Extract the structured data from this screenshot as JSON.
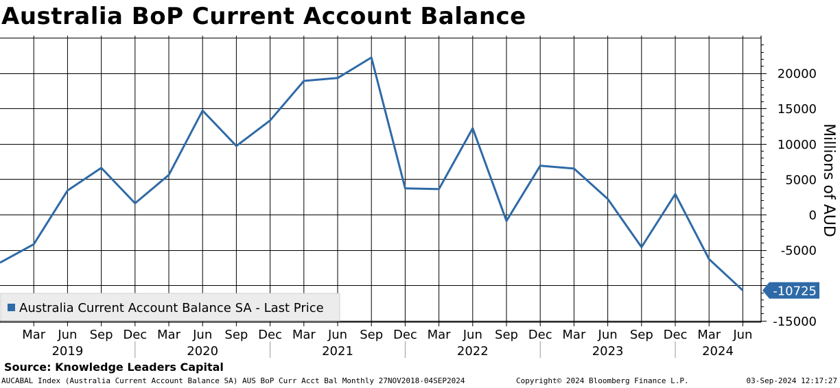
{
  "title": "Australia BoP Current Account Balance",
  "source": "Source: Knowledge Leaders Capital",
  "footer": {
    "left": "AUCABAL Index (Australia Current Account Balance SA) AUS BoP Curr Acct Bal  Monthly 27NOV2018-04SEP2024",
    "center": "Copyright© 2024 Bloomberg Finance L.P.",
    "right": "03-Sep-2024 12:17:27"
  },
  "chart_data": {
    "type": "line",
    "title": "Australia BoP Current Account Balance",
    "ylabel": "Millions of AUD",
    "ylim": [
      -15500,
      25000
    ],
    "yticks": [
      -15000,
      -5000,
      0,
      5000,
      10000,
      15000,
      20000
    ],
    "x_months": [
      "Dec",
      "Mar",
      "Jun",
      "Sep",
      "Dec",
      "Mar",
      "Jun",
      "Sep",
      "Dec",
      "Mar",
      "Jun",
      "Sep",
      "Dec",
      "Mar",
      "Jun",
      "Sep",
      "Dec",
      "Mar",
      "Jun",
      "Sep",
      "Dec",
      "Mar",
      "Jun"
    ],
    "x_labels": [
      "Mar",
      "Jun",
      "Sep",
      "Dec",
      "Mar",
      "Jun",
      "Sep",
      "Dec",
      "Mar",
      "Jun",
      "Sep",
      "Dec",
      "Mar",
      "Jun",
      "Sep",
      "Dec",
      "Mar",
      "Jun",
      "Sep",
      "Dec",
      "Mar",
      "Jun"
    ],
    "years": [
      "2019",
      "2020",
      "2021",
      "2022",
      "2023",
      "2024"
    ],
    "series": [
      {
        "name": "Australia Current Account Balance SA - Last Price",
        "color": "#2e6aa7",
        "x": [
          "2018-12",
          "2019-03",
          "2019-06",
          "2019-09",
          "2019-12",
          "2020-03",
          "2020-06",
          "2020-09",
          "2020-12",
          "2021-03",
          "2021-06",
          "2021-09",
          "2021-12",
          "2022-03",
          "2022-06",
          "2022-09",
          "2022-12",
          "2023-03",
          "2023-06",
          "2023-09",
          "2023-12",
          "2024-03",
          "2024-06"
        ],
        "values": [
          -6800,
          -4200,
          3400,
          6600,
          1600,
          5600,
          14700,
          9700,
          13300,
          18900,
          19300,
          22200,
          3700,
          3600,
          12200,
          -900,
          6900,
          6500,
          2200,
          -4600,
          2900,
          -6300,
          -10725
        ],
        "last_value": "-10725"
      }
    ],
    "legend": "bottom-left",
    "grid": true
  }
}
